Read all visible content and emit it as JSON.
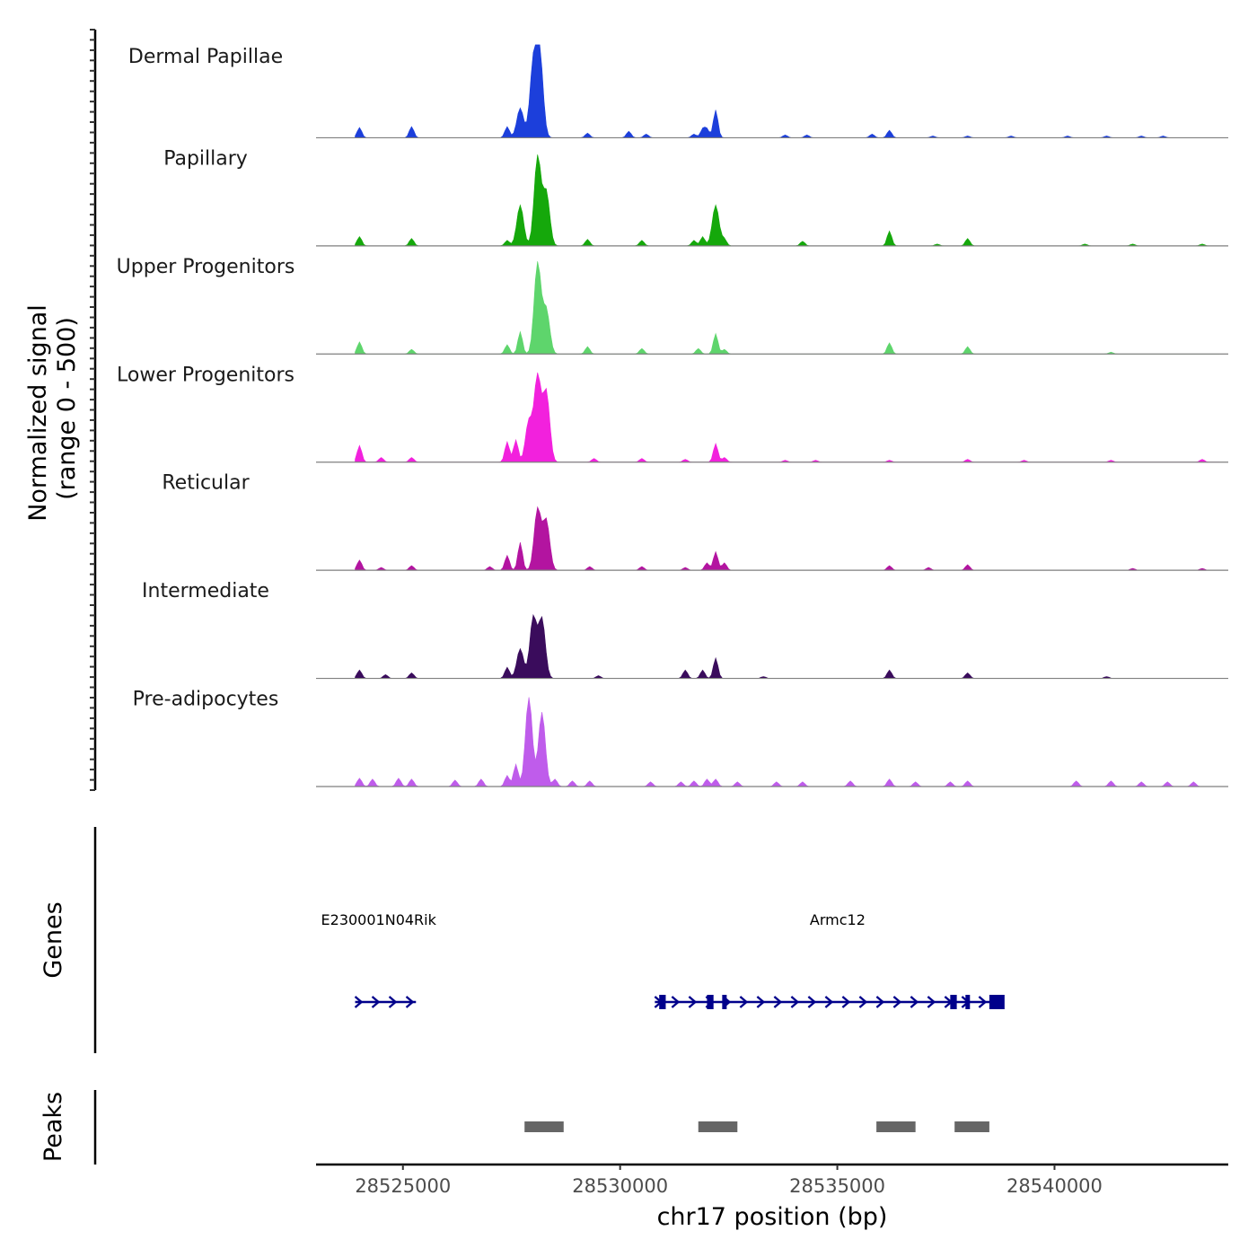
{
  "chart_data": {
    "type": "area",
    "chromosome": "chr17",
    "xlabel": "chr17 position (bp)",
    "xlim": [
      28523000,
      28544000
    ],
    "x_ticks": [
      {
        "value": 28525000,
        "label": "28525000"
      },
      {
        "value": 28530000,
        "label": "28530000"
      },
      {
        "value": 28535000,
        "label": "28535000"
      },
      {
        "value": 28540000,
        "label": "28540000"
      }
    ],
    "ylabel_line1": "Normalized signal",
    "ylabel_line2": "(range 0 - 500)",
    "ylim": [
      0,
      500
    ],
    "series": [
      {
        "name": "Dermal Papillae",
        "color": "#1c3fdb",
        "peaks": [
          [
            28524000,
            55
          ],
          [
            28525200,
            60
          ],
          [
            28527400,
            60
          ],
          [
            28527700,
            160
          ],
          [
            28528000,
            390
          ],
          [
            28528150,
            440
          ],
          [
            28529250,
            25
          ],
          [
            28530200,
            35
          ],
          [
            28530600,
            20
          ],
          [
            28531700,
            20
          ],
          [
            28531900,
            45
          ],
          [
            28532000,
            45
          ],
          [
            28532200,
            150
          ],
          [
            28533800,
            15
          ],
          [
            28534300,
            15
          ],
          [
            28535800,
            20
          ],
          [
            28536200,
            40
          ],
          [
            28537200,
            10
          ],
          [
            28538000,
            10
          ],
          [
            28539000,
            10
          ],
          [
            28540300,
            10
          ],
          [
            28541200,
            10
          ],
          [
            28542000,
            10
          ],
          [
            28542500,
            10
          ]
        ]
      },
      {
        "name": "Papillary",
        "color": "#15a80b",
        "peaks": [
          [
            28524000,
            50
          ],
          [
            28525200,
            40
          ],
          [
            28527400,
            30
          ],
          [
            28527700,
            220
          ],
          [
            28528100,
            480
          ],
          [
            28528300,
            290
          ],
          [
            28529250,
            35
          ],
          [
            28530500,
            30
          ],
          [
            28531700,
            30
          ],
          [
            28531900,
            50
          ],
          [
            28532200,
            220
          ],
          [
            28532400,
            35
          ],
          [
            28534200,
            25
          ],
          [
            28536200,
            80
          ],
          [
            28537300,
            10
          ],
          [
            28538000,
            40
          ],
          [
            28540700,
            10
          ],
          [
            28541800,
            10
          ],
          [
            28543400,
            10
          ]
        ]
      },
      {
        "name": "Upper Progenitors",
        "color": "#5ed56c",
        "peaks": [
          [
            28524000,
            65
          ],
          [
            28525200,
            25
          ],
          [
            28527400,
            50
          ],
          [
            28527700,
            120
          ],
          [
            28528100,
            490
          ],
          [
            28528300,
            240
          ],
          [
            28529250,
            40
          ],
          [
            28530500,
            30
          ],
          [
            28531800,
            30
          ],
          [
            28532200,
            110
          ],
          [
            28532400,
            25
          ],
          [
            28536200,
            60
          ],
          [
            28538000,
            40
          ],
          [
            28541300,
            10
          ]
        ]
      },
      {
        "name": "Lower Progenitors",
        "color": "#f221dd",
        "peaks": [
          [
            28524000,
            90
          ],
          [
            28524500,
            25
          ],
          [
            28525200,
            25
          ],
          [
            28527400,
            110
          ],
          [
            28527600,
            120
          ],
          [
            28527900,
            220
          ],
          [
            28528100,
            460
          ],
          [
            28528300,
            380
          ],
          [
            28529400,
            20
          ],
          [
            28530500,
            20
          ],
          [
            28531500,
            15
          ],
          [
            28532200,
            100
          ],
          [
            28532400,
            25
          ],
          [
            28533800,
            10
          ],
          [
            28534500,
            10
          ],
          [
            28536200,
            10
          ],
          [
            28538000,
            15
          ],
          [
            28539300,
            10
          ],
          [
            28541300,
            10
          ],
          [
            28543400,
            15
          ]
        ]
      },
      {
        "name": "Reticular",
        "color": "#b314a0",
        "peaks": [
          [
            28524000,
            55
          ],
          [
            28524500,
            15
          ],
          [
            28525200,
            25
          ],
          [
            28527000,
            20
          ],
          [
            28527400,
            80
          ],
          [
            28527700,
            150
          ],
          [
            28528100,
            330
          ],
          [
            28528300,
            270
          ],
          [
            28529300,
            20
          ],
          [
            28530500,
            20
          ],
          [
            28531500,
            15
          ],
          [
            28532000,
            40
          ],
          [
            28532200,
            100
          ],
          [
            28532400,
            40
          ],
          [
            28536200,
            25
          ],
          [
            28537100,
            15
          ],
          [
            28538000,
            30
          ],
          [
            28541800,
            10
          ],
          [
            28543400,
            10
          ]
        ]
      },
      {
        "name": "Intermediate",
        "color": "#3a0c5c",
        "peaks": [
          [
            28524000,
            45
          ],
          [
            28524600,
            20
          ],
          [
            28525200,
            30
          ],
          [
            28527400,
            60
          ],
          [
            28527700,
            160
          ],
          [
            28528000,
            330
          ],
          [
            28528200,
            320
          ],
          [
            28529500,
            15
          ],
          [
            28531500,
            45
          ],
          [
            28531900,
            45
          ],
          [
            28532200,
            110
          ],
          [
            28533300,
            10
          ],
          [
            28536200,
            45
          ],
          [
            28538000,
            30
          ],
          [
            28541200,
            10
          ]
        ]
      },
      {
        "name": "Pre-adipocytes",
        "color": "#bf5ceb",
        "peaks": [
          [
            28524000,
            45
          ],
          [
            28524300,
            40
          ],
          [
            28524900,
            45
          ],
          [
            28525200,
            40
          ],
          [
            28526200,
            35
          ],
          [
            28526800,
            40
          ],
          [
            28527400,
            60
          ],
          [
            28527600,
            120
          ],
          [
            28527900,
            480
          ],
          [
            28528200,
            400
          ],
          [
            28528500,
            40
          ],
          [
            28528900,
            30
          ],
          [
            28529300,
            30
          ],
          [
            28530700,
            25
          ],
          [
            28531400,
            25
          ],
          [
            28531700,
            30
          ],
          [
            28532000,
            40
          ],
          [
            28532200,
            40
          ],
          [
            28532700,
            25
          ],
          [
            28533600,
            25
          ],
          [
            28534200,
            25
          ],
          [
            28535300,
            30
          ],
          [
            28536200,
            40
          ],
          [
            28536800,
            25
          ],
          [
            28537600,
            25
          ],
          [
            28538000,
            30
          ],
          [
            28540500,
            30
          ],
          [
            28541300,
            30
          ],
          [
            28542000,
            25
          ],
          [
            28542600,
            25
          ],
          [
            28543200,
            25
          ]
        ]
      }
    ],
    "genes_track_label": "Genes",
    "genes": [
      {
        "name": "E230001N04Rik",
        "start": 28523900,
        "end": 28525300,
        "strand": "+",
        "exons": []
      },
      {
        "name": "Armc12",
        "start": 28530800,
        "end": 28538800,
        "strand": "+",
        "exons": [
          [
            28530900,
            28531050
          ],
          [
            28532000,
            28532150
          ],
          [
            28532350,
            28532450
          ],
          [
            28537600,
            28537750
          ],
          [
            28537950,
            28538000
          ],
          [
            28538500,
            28538850
          ]
        ]
      }
    ],
    "gene_color": "#00008b",
    "peaks_track_label": "Peaks",
    "peak_regions": [
      {
        "start": 28527800,
        "end": 28528700
      },
      {
        "start": 28531800,
        "end": 28532700
      },
      {
        "start": 28535900,
        "end": 28536800
      },
      {
        "start": 28537700,
        "end": 28538500
      }
    ],
    "peak_color": "#666666"
  }
}
